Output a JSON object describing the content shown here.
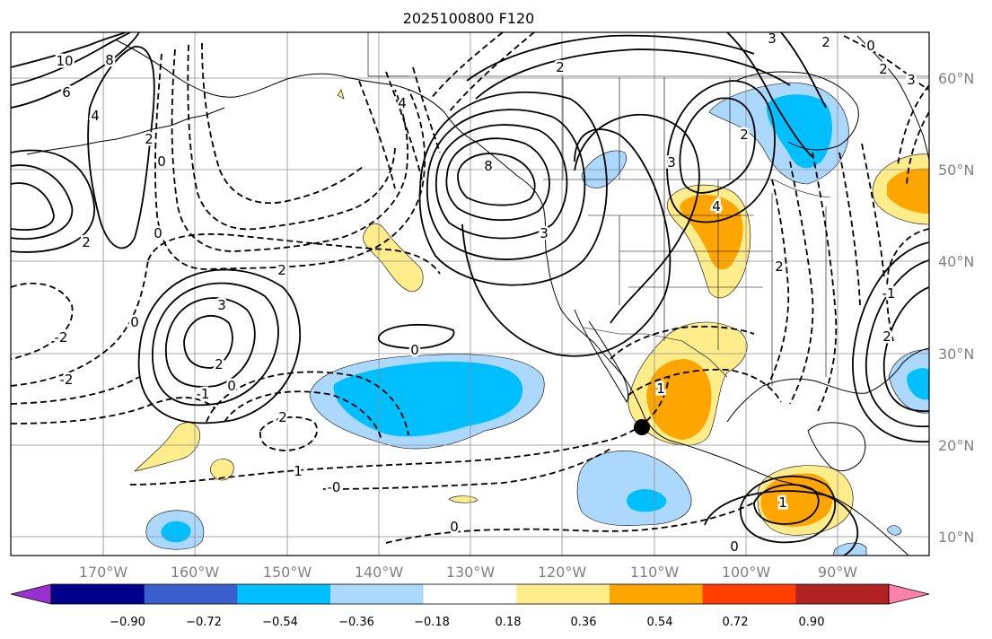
{
  "title": "2025100800 F120",
  "lon_labels": [
    "170°W",
    "160°W",
    "150°W",
    "140°W",
    "130°W",
    "120°W",
    "110°W",
    "100°W",
    "90°W"
  ],
  "lat_labels": [
    "60°N",
    "50°N",
    "40°N",
    "30°N",
    "20°N",
    "10°N"
  ],
  "colorbar": {
    "ticks": [
      "−0.90",
      "−0.72",
      "−0.54",
      "−0.36",
      "−0.18",
      "0.18",
      "0.36",
      "0.54",
      "0.72",
      "0.90"
    ],
    "colors": [
      "#9b30d0",
      "#00008b",
      "#3a5fcd",
      "#00bfff",
      "#add8fe",
      "#ffffff",
      "#ffec8b",
      "#ffa500",
      "#ff3e00",
      "#b22222",
      "#ff82ab"
    ]
  },
  "contour_labels": {
    "c_10": "10",
    "c_8a": "8",
    "c_6a": "6",
    "c_4a": "4",
    "c_2a": "2",
    "c_0a": "0",
    "c_2b": "2",
    "c_0b": "0",
    "c_m2a": "-2",
    "c_m2b": "-2",
    "c_0c": "0",
    "c_3a": "3",
    "c_2c": "2",
    "c_2d": "2",
    "c_1a": "-1",
    "c_0d": "0",
    "c_2e": "2",
    "c_1b": "1",
    "c_0e": "-0",
    "c_0f": "0",
    "c_0g": "0",
    "c_4b": "4",
    "c_8b": "8",
    "c_3b": "3",
    "c_2f": "2",
    "c_3c": "3",
    "c_4c": "4",
    "c_2g": "2",
    "c_1c": "1",
    "c_0h": "0",
    "c_3d": "3",
    "c_2h": "2",
    "c_0i": "0",
    "c_3e": "3",
    "c_2i": "2",
    "c_2j": "2",
    "c_1d": "1",
    "c_0j": "0",
    "c_m1": "-1",
    "c_2k": "2"
  }
}
